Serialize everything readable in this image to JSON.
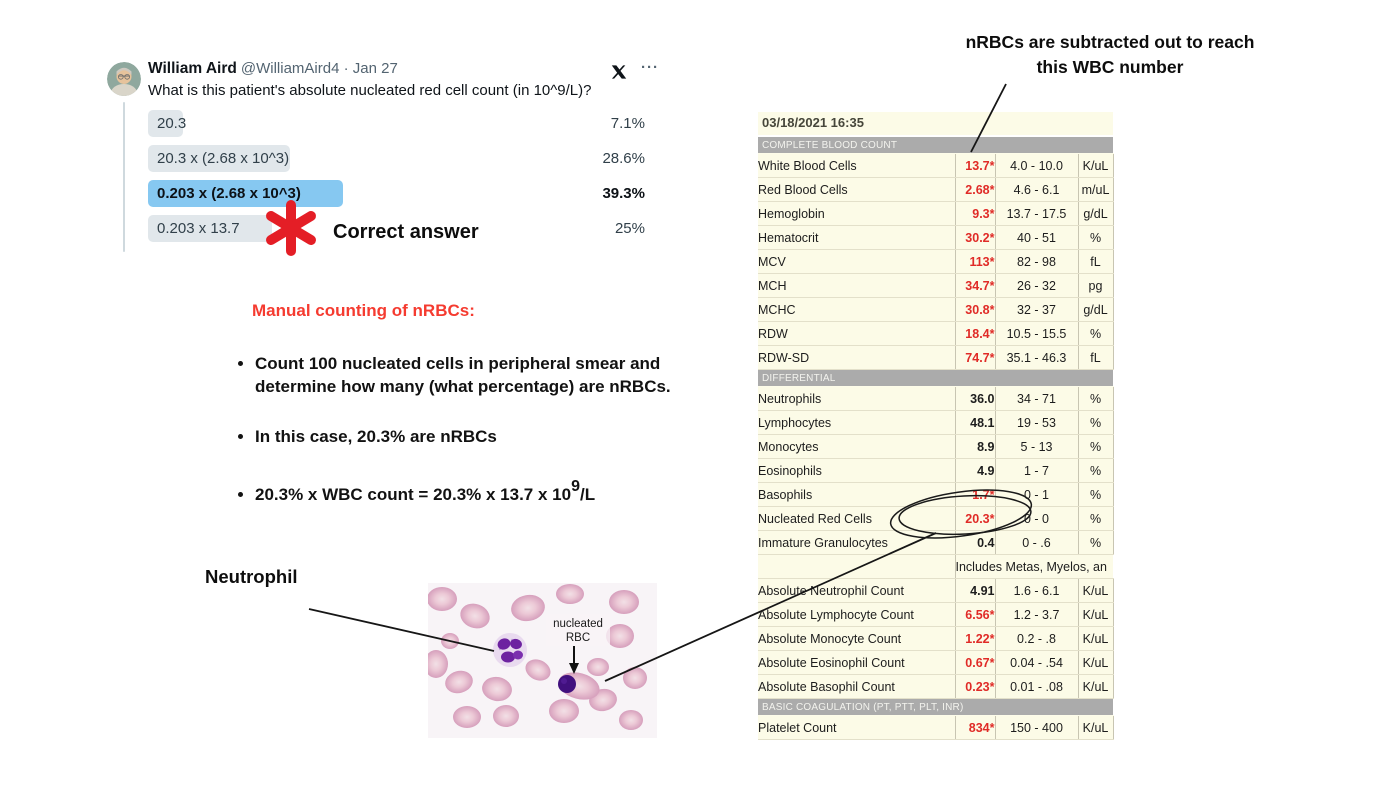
{
  "tweet": {
    "author": "William Aird",
    "handle": "@WilliamAird4",
    "sep": "·",
    "date": "Jan 27",
    "more_icon": "···",
    "question": "What is this patient's absolute nucleated red cell count (in 10^9/L)?",
    "poll": {
      "options": [
        {
          "label": "20.3",
          "pct": "7.1%",
          "bar": 7.1,
          "selected": false
        },
        {
          "label": "20.3 x (2.68 x 10^3)",
          "pct": "28.6%",
          "bar": 28.6,
          "selected": false
        },
        {
          "label": "0.203 x (2.68 x 10^3)",
          "pct": "39.3%",
          "bar": 39.3,
          "selected": true
        },
        {
          "label": "0.203 x 13.7",
          "pct": "25%",
          "bar": 25,
          "selected": false
        }
      ]
    }
  },
  "correct": {
    "label": "Correct answer"
  },
  "notes": {
    "heading": "Manual counting of nRBCs:",
    "bullets": [
      "Count 100 nucleated cells in peripheral smear and determine how many (what percentage) are nRBCs.",
      "In this case, 20.3% are nRBCs"
    ],
    "formula": {
      "pre": "20.3% x WBC count = 20.3% x 13.7 x 10",
      "sup": "9",
      "post": "/L"
    }
  },
  "annotations": {
    "wbc_line1": "nRBCs are subtracted out to reach",
    "wbc_line2": "this WBC number",
    "neutrophil_label": "Neutrophil",
    "smear_line1": "nucleated",
    "smear_line2": "RBC"
  },
  "lab": {
    "datetime": "03/18/2021 16:35",
    "rows": [
      {
        "type": "section",
        "label": "COMPLETE BLOOD COUNT"
      },
      {
        "type": "data",
        "label": "White Blood Cells",
        "value": "13.7*",
        "flag": true,
        "range": "4.0 - 10.0",
        "unit": "K/uL"
      },
      {
        "type": "data",
        "label": "Red Blood Cells",
        "value": "2.68*",
        "flag": true,
        "range": "4.6 - 6.1",
        "unit": "m/uL"
      },
      {
        "type": "data",
        "label": "Hemoglobin",
        "value": "9.3*",
        "flag": true,
        "range": "13.7 - 17.5",
        "unit": "g/dL"
      },
      {
        "type": "data",
        "label": "Hematocrit",
        "value": "30.2*",
        "flag": true,
        "range": "40 - 51",
        "unit": "%"
      },
      {
        "type": "data",
        "label": "MCV",
        "value": "113*",
        "flag": true,
        "range": "82 - 98",
        "unit": "fL"
      },
      {
        "type": "data",
        "label": "MCH",
        "value": "34.7*",
        "flag": true,
        "range": "26 - 32",
        "unit": "pg"
      },
      {
        "type": "data",
        "label": "MCHC",
        "value": "30.8*",
        "flag": true,
        "range": "32 - 37",
        "unit": "g/dL"
      },
      {
        "type": "data",
        "label": "RDW",
        "value": "18.4*",
        "flag": true,
        "range": "10.5 - 15.5",
        "unit": "%"
      },
      {
        "type": "data",
        "label": "RDW-SD",
        "value": "74.7*",
        "flag": true,
        "range": "35.1 - 46.3",
        "unit": "fL"
      },
      {
        "type": "section",
        "label": "DIFFERENTIAL"
      },
      {
        "type": "data",
        "label": "Neutrophils",
        "value": "36.0",
        "flag": false,
        "range": "34 - 71",
        "unit": "%"
      },
      {
        "type": "data",
        "label": "Lymphocytes",
        "value": "48.1",
        "flag": false,
        "range": "19 - 53",
        "unit": "%"
      },
      {
        "type": "data",
        "label": "Monocytes",
        "value": "8.9",
        "flag": false,
        "range": "5 - 13",
        "unit": "%"
      },
      {
        "type": "data",
        "label": "Eosinophils",
        "value": "4.9",
        "flag": false,
        "range": "1 - 7",
        "unit": "%"
      },
      {
        "type": "data",
        "label": "Basophils",
        "value": "1.7*",
        "flag": true,
        "range": "0 - 1",
        "unit": "%"
      },
      {
        "type": "data",
        "label": "Nucleated Red Cells",
        "value": "20.3*",
        "flag": true,
        "range": "0 - 0",
        "unit": "%",
        "circled": true
      },
      {
        "type": "data",
        "label": "Immature Granulocytes",
        "value": "0.4",
        "flag": false,
        "range": "0 - .6",
        "unit": "%"
      },
      {
        "type": "note",
        "note": "Includes Metas, Myelos, an"
      },
      {
        "type": "data",
        "label": "Absolute Neutrophil Count",
        "value": "4.91",
        "flag": false,
        "range": "1.6 - 6.1",
        "unit": "K/uL"
      },
      {
        "type": "data",
        "label": "Absolute Lymphocyte Count",
        "value": "6.56*",
        "flag": true,
        "range": "1.2 - 3.7",
        "unit": "K/uL"
      },
      {
        "type": "data",
        "label": "Absolute Monocyte Count",
        "value": "1.22*",
        "flag": true,
        "range": "0.2 - .8",
        "unit": "K/uL"
      },
      {
        "type": "data",
        "label": "Absolute Eosinophil Count",
        "value": "0.67*",
        "flag": true,
        "range": "0.04 - .54",
        "unit": "K/uL"
      },
      {
        "type": "data",
        "label": "Absolute Basophil Count",
        "value": "0.23*",
        "flag": true,
        "range": "0.01 - .08",
        "unit": "K/uL"
      },
      {
        "type": "section",
        "label": "BASIC COAGULATION (PT, PTT, PLT, INR)"
      },
      {
        "type": "data",
        "label": "Platelet Count",
        "value": "834*",
        "flag": true,
        "range": "150 - 400",
        "unit": "K/uL"
      }
    ]
  },
  "colors": {
    "accent_red": "#e02b27",
    "heading_red": "#f53b30",
    "poll_selected_blue": "#86c8f1",
    "poll_bar_gray": "#e1e7eb",
    "table_bg": "#fcfbe7",
    "section_gray": "#ababab",
    "annotation_black": "#161616"
  }
}
